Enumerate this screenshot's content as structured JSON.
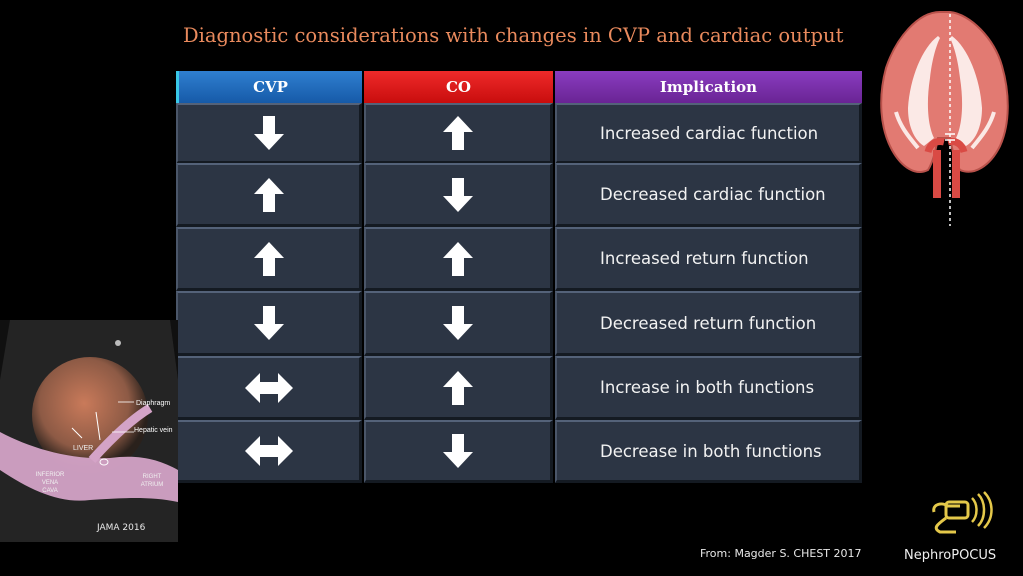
{
  "title": "Diagnostic considerations with changes in CVP and cardiac output",
  "headers": {
    "cvp": "CVP",
    "co": "CO",
    "implication": "Implication"
  },
  "rows": [
    {
      "cvp": "down",
      "co": "up",
      "implication": "Increased cardiac function"
    },
    {
      "cvp": "up",
      "co": "down",
      "implication": "Decreased cardiac function"
    },
    {
      "cvp": "up",
      "co": "up",
      "implication": "Increased return function"
    },
    {
      "cvp": "down",
      "co": "down",
      "implication": "Decreased return function"
    },
    {
      "cvp": "left-right",
      "co": "up",
      "implication": "Increase in both functions"
    },
    {
      "cvp": "left-right",
      "co": "down",
      "implication": "Decrease in both functions"
    }
  ],
  "ultrasound": {
    "labels": {
      "diaphragm": "Diaphragm",
      "hepatic_vein": "Hepatic vein",
      "liver": "LIVER",
      "ivc": "INFERIOR VENA CAVA",
      "right_atrium": "RIGHT ATRIUM"
    },
    "caption": "JAMA 2016"
  },
  "source": "From: Magder  S. CHEST 2017",
  "logo_text": "NephroPOCUS",
  "colors": {
    "title": "#e98a5d",
    "cvp_header": "#1f6bbf",
    "co_header": "#d91818",
    "implication_header": "#7a2fae",
    "cell": "#2c3544"
  }
}
